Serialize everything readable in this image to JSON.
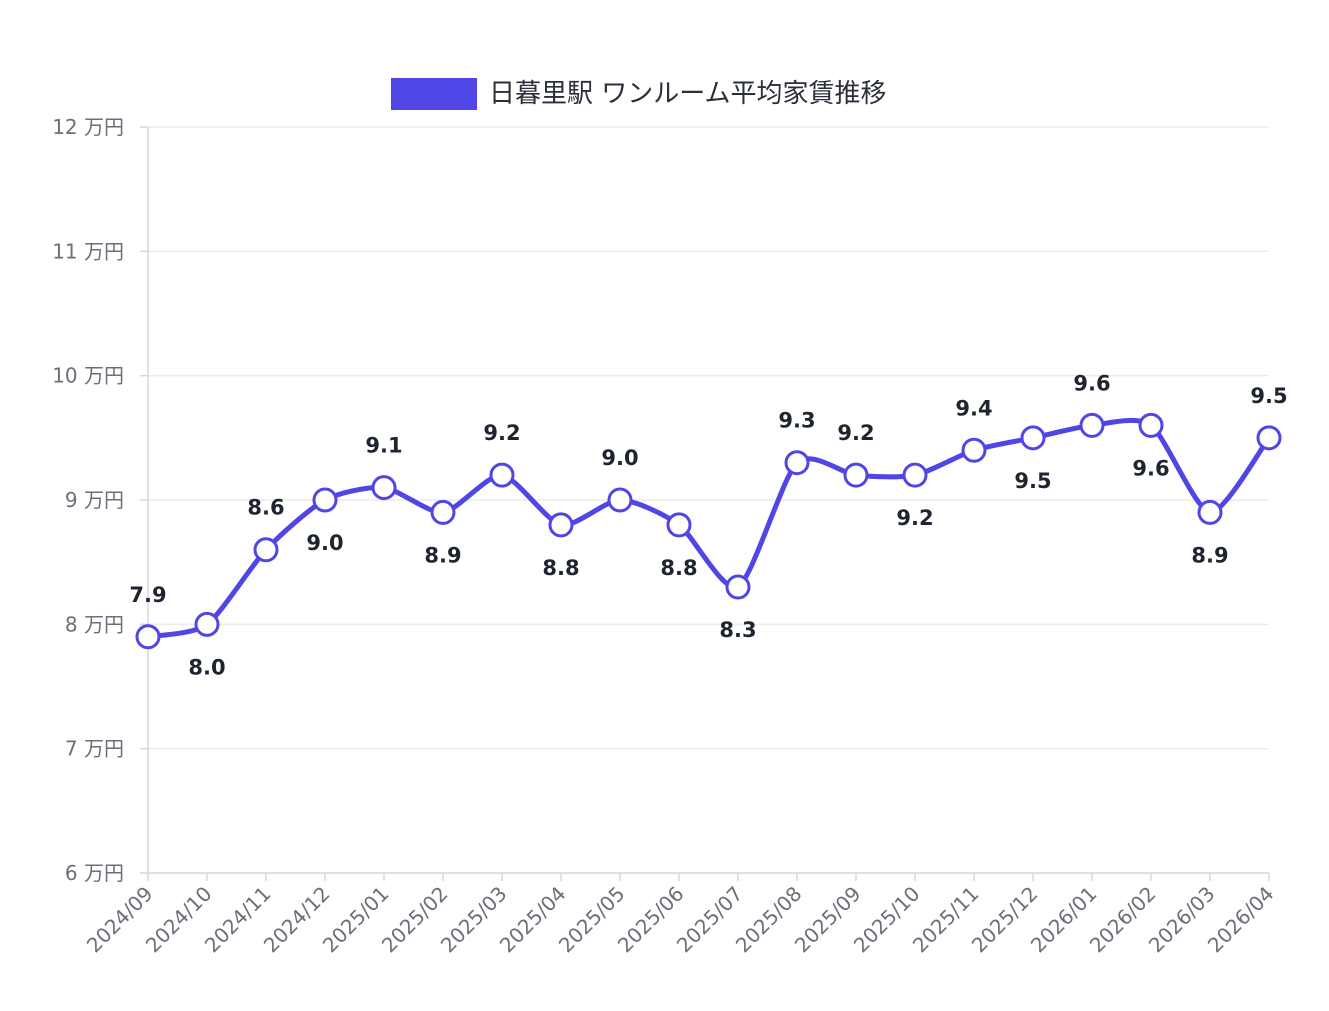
{
  "chart_data": {
    "type": "line",
    "legend": {
      "placement": "top-center",
      "color": "#4f46e5"
    },
    "categories": [
      "2024/09",
      "2024/10",
      "2024/11",
      "2024/12",
      "2025/01",
      "2025/02",
      "2025/03",
      "2025/04",
      "2025/05",
      "2025/06",
      "2025/07",
      "2025/08",
      "2025/09",
      "2025/10",
      "2025/11",
      "2025/12",
      "2026/01",
      "2026/02",
      "2026/03",
      "2026/04"
    ],
    "series": [
      {
        "name": "日暮里駅 ワンルーム平均家賃推移",
        "color": "#4f46e5",
        "values": [
          7.9,
          8.0,
          8.6,
          9.0,
          9.1,
          8.9,
          9.2,
          8.8,
          9.0,
          8.8,
          8.3,
          9.3,
          9.2,
          9.2,
          9.4,
          9.5,
          9.6,
          9.6,
          8.9,
          9.5
        ],
        "value_labels": [
          "7.9",
          "8.0",
          "8.6",
          "9.0",
          "9.1",
          "8.9",
          "9.2",
          "8.8",
          "9.0",
          "8.8",
          "8.3",
          "9.3",
          "9.2",
          "9.2",
          "9.4",
          "9.5",
          "9.6",
          "9.6",
          "8.9",
          "9.5"
        ],
        "label_position": [
          "above",
          "below",
          "above",
          "below",
          "above",
          "below",
          "above",
          "below",
          "above",
          "below",
          "below",
          "above",
          "above",
          "below",
          "above",
          "below",
          "above",
          "below",
          "below",
          "above"
        ]
      }
    ],
    "ylim": [
      6,
      12
    ],
    "yticks": [
      6,
      7,
      8,
      9,
      10,
      11,
      12
    ],
    "ytick_labels": [
      "6 万円",
      "7 万円",
      "8 万円",
      "9 万円",
      "10 万円",
      "11 万円",
      "12 万円"
    ],
    "grid": true
  }
}
